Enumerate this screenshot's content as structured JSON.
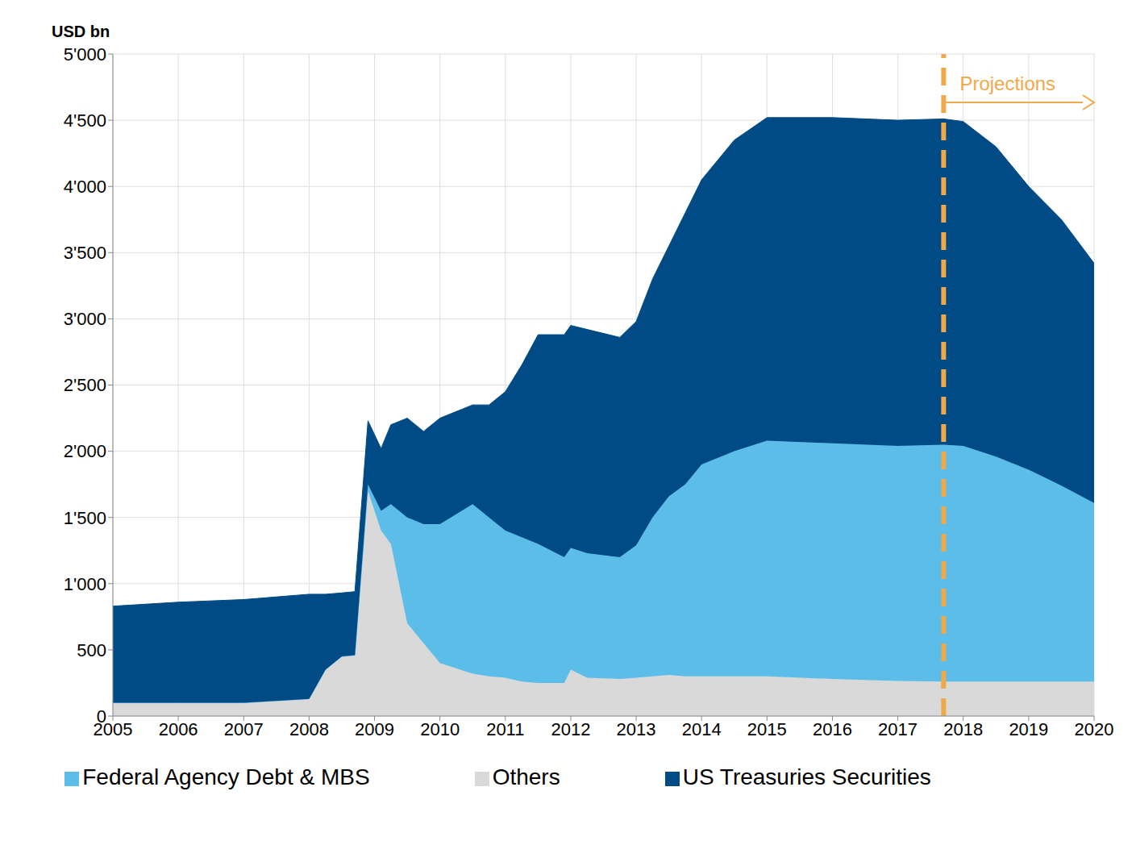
{
  "chart_data": {
    "type": "area",
    "stacked": true,
    "grid": true,
    "legend": "bottom",
    "ylabel": "USD bn",
    "x": [
      2005,
      2006,
      2007,
      2008,
      2008.25,
      2008.5,
      2008.7,
      2008.9,
      2009.1,
      2009.25,
      2009.5,
      2009.75,
      2010,
      2010.5,
      2010.75,
      2011,
      2011.25,
      2011.5,
      2011.9,
      2012,
      2012.25,
      2012.75,
      2013,
      2013.25,
      2013.5,
      2013.75,
      2014,
      2014.5,
      2015,
      2016,
      2017,
      2017.7,
      2018,
      2018.5,
      2019,
      2019.5,
      2020
    ],
    "series": [
      {
        "name": "Others",
        "color": "#d9d9d9",
        "values": [
          100,
          100,
          100,
          130,
          350,
          450,
          460,
          1700,
          1400,
          1300,
          700,
          550,
          400,
          320,
          300,
          290,
          260,
          250,
          250,
          350,
          290,
          280,
          290,
          300,
          310,
          300,
          300,
          300,
          300,
          280,
          265,
          260,
          260,
          260,
          260,
          260,
          260
        ]
      },
      {
        "name": "Federal Agency Debt & MBS",
        "color": "#5bbde8",
        "values": [
          0,
          0,
          0,
          0,
          0,
          0,
          0,
          50,
          150,
          300,
          800,
          900,
          1050,
          1280,
          1200,
          1110,
          1090,
          1050,
          950,
          920,
          940,
          920,
          1000,
          1200,
          1350,
          1450,
          1600,
          1700,
          1780,
          1780,
          1775,
          1790,
          1780,
          1700,
          1600,
          1480,
          1350
        ]
      },
      {
        "name": "US Treasuries Securities",
        "color": "#004b85",
        "values": [
          730,
          760,
          780,
          790,
          570,
          480,
          480,
          480,
          470,
          600,
          750,
          700,
          800,
          750,
          850,
          1050,
          1300,
          1580,
          1680,
          1680,
          1690,
          1660,
          1690,
          1800,
          1890,
          2050,
          2150,
          2350,
          2440,
          2460,
          2460,
          2460,
          2450,
          2340,
          2140,
          2010,
          1810
        ]
      }
    ],
    "xlim": [
      2005,
      2020
    ],
    "xticks": [
      2005,
      2006,
      2007,
      2008,
      2009,
      2010,
      2011,
      2012,
      2013,
      2014,
      2015,
      2016,
      2017,
      2018,
      2019,
      2020
    ],
    "ylim": [
      0,
      5000
    ],
    "yticks": [
      0,
      500,
      {
        "value": 1000,
        "label": "1'000"
      },
      {
        "value": 1500,
        "label": "1'500"
      },
      {
        "value": 2000,
        "label": "2'000"
      },
      {
        "value": 2500,
        "label": "2'500"
      },
      {
        "value": 3000,
        "label": "3'000"
      },
      {
        "value": 3500,
        "label": "3'500"
      },
      {
        "value": 4000,
        "label": "4'000"
      },
      {
        "value": 4500,
        "label": "4'500"
      },
      {
        "value": 5000,
        "label": "5'000"
      }
    ],
    "annotations": [
      {
        "text": "Projections",
        "x": 2017.7
      }
    ]
  }
}
